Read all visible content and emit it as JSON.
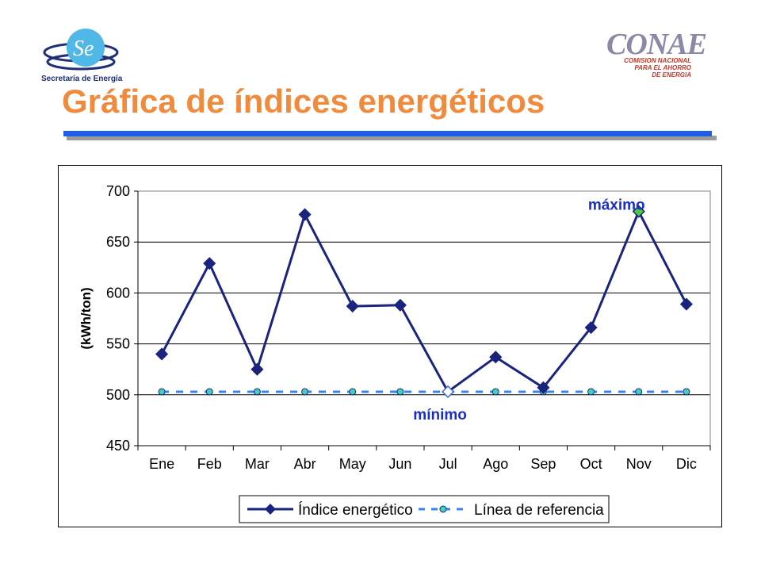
{
  "header": {
    "title": "Gráfica de índices energéticos",
    "logo_left_text": "Secretaría de Energía",
    "logo_right_word": "CONAE",
    "logo_right_sub": [
      "COMISION NACIONAL",
      "PARA EL AHORRO",
      "DE ENERGIA"
    ]
  },
  "colors": {
    "title": "#f08a3c",
    "rule": "#1f5ee6",
    "series_main": "#1a237e",
    "series_ref": "#3b82f6",
    "annotation": "#1a2fc8",
    "max_marker": "#4ccc3b"
  },
  "chart_data": {
    "type": "line",
    "categories": [
      "Ene",
      "Feb",
      "Mar",
      "Abr",
      "May",
      "Jun",
      "Jul",
      "Ago",
      "Sep",
      "Oct",
      "Nov",
      "Dic"
    ],
    "series": [
      {
        "name": "Índice energético",
        "values": [
          540,
          629,
          525,
          677,
          587,
          588,
          503,
          537,
          507,
          566,
          680,
          589
        ]
      },
      {
        "name": "Línea de referencia",
        "values": [
          503,
          503,
          503,
          503,
          503,
          503,
          503,
          503,
          503,
          503,
          503,
          503
        ]
      }
    ],
    "ylabel": "(kWh/ton)",
    "ylim": [
      450,
      700
    ],
    "yticks": [
      450,
      500,
      550,
      600,
      650,
      700
    ],
    "grid": true,
    "legend_position": "bottom",
    "annotations": [
      {
        "text": "máximo",
        "category": "Nov"
      },
      {
        "text": "mínimo",
        "category": "Jul"
      }
    ]
  }
}
